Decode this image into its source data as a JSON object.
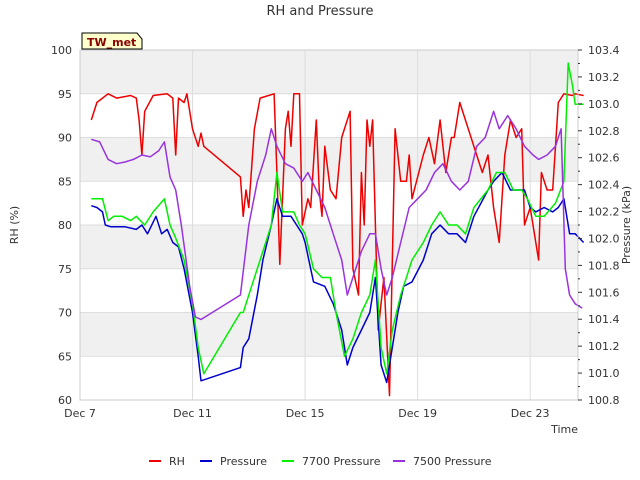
{
  "chart_data": {
    "type": "line",
    "title": "RH and Pressure",
    "station_tag": "TW_met",
    "xlabel": "Time",
    "ylabel_left": "RH (%)",
    "ylabel_right": "Pressure (kPa)",
    "x_unit": "days",
    "xlim": [
      7,
      24.7
    ],
    "ylim_left": [
      60,
      100
    ],
    "ylim_right": [
      100.8,
      103.4
    ],
    "x_ticks": [
      {
        "value": 7,
        "label": "Dec 7"
      },
      {
        "value": 11,
        "label": "Dec 11"
      },
      {
        "value": 15,
        "label": "Dec 15"
      },
      {
        "value": 19,
        "label": "Dec 19"
      },
      {
        "value": 23,
        "label": "Dec 23"
      }
    ],
    "y_ticks_left": [
      60,
      65,
      70,
      75,
      80,
      85,
      90,
      95,
      100
    ],
    "y_ticks_right": [
      "100.8",
      "101.0",
      "101.2",
      "101.4",
      "101.6",
      "101.8",
      "102.0",
      "102.2",
      "102.4",
      "102.6",
      "102.8",
      "103.0",
      "103.2",
      "103.4"
    ],
    "grid": true,
    "legend_position": "bottom",
    "series": [
      {
        "name": "RH",
        "axis": "left",
        "color": "#ee0000",
        "points": [
          [
            7.4,
            92
          ],
          [
            7.6,
            94
          ],
          [
            8.0,
            95
          ],
          [
            8.3,
            94.5
          ],
          [
            8.8,
            94.8
          ],
          [
            9.0,
            94.5
          ],
          [
            9.1,
            92
          ],
          [
            9.2,
            88
          ],
          [
            9.3,
            93
          ],
          [
            9.6,
            94.8
          ],
          [
            10.1,
            95
          ],
          [
            10.3,
            94.5
          ],
          [
            10.4,
            88
          ],
          [
            10.5,
            94.5
          ],
          [
            10.7,
            94
          ],
          [
            10.8,
            95
          ],
          [
            11.0,
            91
          ],
          [
            11.2,
            89
          ],
          [
            11.3,
            90.5
          ],
          [
            11.4,
            89
          ],
          [
            12.7,
            85.5
          ],
          [
            12.8,
            81
          ],
          [
            12.9,
            84
          ],
          [
            13.0,
            82
          ],
          [
            13.2,
            91
          ],
          [
            13.4,
            94.5
          ],
          [
            13.6,
            94.7
          ],
          [
            13.9,
            95
          ],
          [
            14.0,
            86
          ],
          [
            14.1,
            75.5
          ],
          [
            14.3,
            91
          ],
          [
            14.4,
            93
          ],
          [
            14.5,
            89
          ],
          [
            14.6,
            95
          ],
          [
            14.8,
            95
          ],
          [
            14.9,
            80
          ],
          [
            15.1,
            83
          ],
          [
            15.2,
            82
          ],
          [
            15.4,
            92
          ],
          [
            15.5,
            84
          ],
          [
            15.6,
            81
          ],
          [
            15.7,
            89
          ],
          [
            15.9,
            84
          ],
          [
            16.1,
            83
          ],
          [
            16.3,
            90
          ],
          [
            16.6,
            93
          ],
          [
            16.7,
            75
          ],
          [
            16.9,
            72
          ],
          [
            17.0,
            86
          ],
          [
            17.1,
            80
          ],
          [
            17.2,
            92
          ],
          [
            17.3,
            89
          ],
          [
            17.4,
            92
          ],
          [
            17.6,
            68
          ],
          [
            17.8,
            74
          ],
          [
            18.0,
            60.5
          ],
          [
            18.2,
            91
          ],
          [
            18.4,
            85
          ],
          [
            18.6,
            85
          ],
          [
            18.7,
            88
          ],
          [
            18.8,
            83
          ],
          [
            19.2,
            88
          ],
          [
            19.4,
            90
          ],
          [
            19.6,
            87
          ],
          [
            19.8,
            92
          ],
          [
            20.0,
            86
          ],
          [
            20.2,
            90
          ],
          [
            20.3,
            90
          ],
          [
            20.5,
            94
          ],
          [
            21.3,
            86
          ],
          [
            21.5,
            88
          ],
          [
            21.7,
            82
          ],
          [
            21.9,
            78
          ],
          [
            22.1,
            88
          ],
          [
            22.3,
            92
          ],
          [
            22.5,
            90
          ],
          [
            22.7,
            91
          ],
          [
            22.8,
            80
          ],
          [
            23.0,
            82
          ],
          [
            23.3,
            76
          ],
          [
            23.4,
            86
          ],
          [
            23.6,
            84
          ],
          [
            23.8,
            84
          ],
          [
            24.0,
            94
          ],
          [
            24.2,
            95
          ],
          [
            24.5,
            94.8
          ],
          [
            24.6,
            95
          ],
          [
            24.9,
            94.8
          ]
        ]
      },
      {
        "name": "Pressure",
        "axis": "left",
        "color": "#0000cc",
        "points": [
          [
            7.4,
            82.2
          ],
          [
            7.6,
            82
          ],
          [
            7.8,
            81.5
          ],
          [
            7.9,
            80
          ],
          [
            8.1,
            79.8
          ],
          [
            8.6,
            79.8
          ],
          [
            9.0,
            79.5
          ],
          [
            9.2,
            80
          ],
          [
            9.4,
            79
          ],
          [
            9.7,
            81
          ],
          [
            9.9,
            79
          ],
          [
            10.1,
            79.5
          ],
          [
            10.3,
            78
          ],
          [
            10.5,
            77.5
          ],
          [
            10.7,
            75
          ],
          [
            11.0,
            70
          ],
          [
            11.2,
            65
          ],
          [
            11.3,
            62.2
          ],
          [
            12.7,
            63.7
          ],
          [
            12.8,
            66
          ],
          [
            13.0,
            67
          ],
          [
            13.3,
            72
          ],
          [
            13.5,
            76
          ],
          [
            13.8,
            80
          ],
          [
            14.0,
            83
          ],
          [
            14.2,
            81
          ],
          [
            14.5,
            81
          ],
          [
            14.7,
            80
          ],
          [
            14.9,
            79
          ],
          [
            15.0,
            78
          ],
          [
            15.2,
            75
          ],
          [
            15.3,
            73.5
          ],
          [
            15.7,
            73
          ],
          [
            16.0,
            71
          ],
          [
            16.3,
            68
          ],
          [
            16.5,
            64
          ],
          [
            16.7,
            66
          ],
          [
            17.0,
            68
          ],
          [
            17.3,
            70
          ],
          [
            17.5,
            74
          ],
          [
            17.7,
            64
          ],
          [
            17.9,
            62
          ],
          [
            18.1,
            66
          ],
          [
            18.3,
            70
          ],
          [
            18.5,
            73
          ],
          [
            18.8,
            73.5
          ],
          [
            19.2,
            76
          ],
          [
            19.5,
            79
          ],
          [
            19.8,
            80
          ],
          [
            20.1,
            79
          ],
          [
            20.4,
            79
          ],
          [
            20.7,
            78
          ],
          [
            21.0,
            81
          ],
          [
            21.5,
            84
          ],
          [
            21.7,
            85
          ],
          [
            22.0,
            86
          ],
          [
            22.3,
            84
          ],
          [
            22.6,
            84
          ],
          [
            22.8,
            84
          ],
          [
            23.0,
            82
          ],
          [
            23.2,
            81.5
          ],
          [
            23.5,
            82
          ],
          [
            23.8,
            81.5
          ],
          [
            24.0,
            82
          ],
          [
            24.2,
            83
          ],
          [
            24.4,
            79
          ],
          [
            24.6,
            79
          ],
          [
            24.9,
            78
          ]
        ]
      },
      {
        "name": "7700 Pressure",
        "axis": "left",
        "color": "#00ee00",
        "points": [
          [
            7.4,
            83
          ],
          [
            7.8,
            83
          ],
          [
            8.0,
            80.5
          ],
          [
            8.2,
            81
          ],
          [
            8.5,
            81
          ],
          [
            8.8,
            80.5
          ],
          [
            9.0,
            81
          ],
          [
            9.3,
            80
          ],
          [
            9.6,
            81.5
          ],
          [
            10.0,
            83
          ],
          [
            10.2,
            80
          ],
          [
            10.4,
            78.5
          ],
          [
            10.7,
            76
          ],
          [
            11.0,
            71
          ],
          [
            11.2,
            66
          ],
          [
            11.4,
            63
          ],
          [
            12.7,
            70
          ],
          [
            12.8,
            70
          ],
          [
            13.1,
            73
          ],
          [
            13.4,
            76
          ],
          [
            13.8,
            80
          ],
          [
            14.0,
            86
          ],
          [
            14.2,
            81.5
          ],
          [
            14.6,
            81.5
          ],
          [
            14.8,
            80
          ],
          [
            15.0,
            79
          ],
          [
            15.3,
            75
          ],
          [
            15.6,
            74
          ],
          [
            15.9,
            74
          ],
          [
            16.1,
            70
          ],
          [
            16.4,
            65
          ],
          [
            16.7,
            67
          ],
          [
            17.0,
            70
          ],
          [
            17.3,
            72
          ],
          [
            17.5,
            76
          ],
          [
            17.7,
            66
          ],
          [
            17.9,
            63
          ],
          [
            18.1,
            68
          ],
          [
            18.4,
            72
          ],
          [
            18.6,
            74
          ],
          [
            18.8,
            76
          ],
          [
            19.2,
            78
          ],
          [
            19.5,
            80
          ],
          [
            19.8,
            81.5
          ],
          [
            20.1,
            80
          ],
          [
            20.4,
            80
          ],
          [
            20.7,
            79
          ],
          [
            21.0,
            82
          ],
          [
            21.5,
            84
          ],
          [
            21.8,
            86
          ],
          [
            22.1,
            86
          ],
          [
            22.4,
            84
          ],
          [
            22.7,
            84
          ],
          [
            22.9,
            83
          ],
          [
            23.2,
            81
          ],
          [
            23.5,
            81
          ],
          [
            23.9,
            82.5
          ],
          [
            24.2,
            85
          ],
          [
            24.35,
            98.5
          ],
          [
            24.5,
            96
          ],
          [
            24.6,
            93.8
          ],
          [
            24.9,
            93.8
          ]
        ]
      },
      {
        "name": "7500 Pressure",
        "axis": "left",
        "color": "#9933dd",
        "points": [
          [
            7.4,
            89.8
          ],
          [
            7.7,
            89.5
          ],
          [
            8.0,
            87.5
          ],
          [
            8.3,
            87
          ],
          [
            8.6,
            87.2
          ],
          [
            8.9,
            87.5
          ],
          [
            9.2,
            88
          ],
          [
            9.5,
            87.8
          ],
          [
            9.8,
            88.5
          ],
          [
            10.0,
            89.5
          ],
          [
            10.2,
            85.5
          ],
          [
            10.4,
            84
          ],
          [
            10.6,
            80
          ],
          [
            10.9,
            73
          ],
          [
            11.1,
            69.5
          ],
          [
            11.3,
            69.2
          ],
          [
            12.7,
            72
          ],
          [
            13.0,
            80
          ],
          [
            13.3,
            85
          ],
          [
            13.6,
            88
          ],
          [
            13.8,
            91
          ],
          [
            14.0,
            89
          ],
          [
            14.3,
            87
          ],
          [
            14.6,
            86.5
          ],
          [
            14.9,
            85
          ],
          [
            15.1,
            86
          ],
          [
            15.4,
            84
          ],
          [
            15.7,
            82
          ],
          [
            16.0,
            79
          ],
          [
            16.3,
            76
          ],
          [
            16.5,
            72
          ],
          [
            16.7,
            74
          ],
          [
            17.0,
            77
          ],
          [
            17.3,
            79
          ],
          [
            17.5,
            79
          ],
          [
            17.7,
            75
          ],
          [
            17.9,
            72
          ],
          [
            18.1,
            74
          ],
          [
            18.4,
            78
          ],
          [
            18.7,
            82
          ],
          [
            19.0,
            83
          ],
          [
            19.3,
            84
          ],
          [
            19.6,
            86
          ],
          [
            19.9,
            87
          ],
          [
            20.2,
            85
          ],
          [
            20.5,
            84
          ],
          [
            20.8,
            85
          ],
          [
            21.1,
            89
          ],
          [
            21.4,
            90
          ],
          [
            21.7,
            93
          ],
          [
            21.9,
            91
          ],
          [
            22.2,
            92.5
          ],
          [
            22.5,
            91
          ],
          [
            22.8,
            89
          ],
          [
            23.1,
            88
          ],
          [
            23.3,
            87.5
          ],
          [
            23.6,
            88
          ],
          [
            23.9,
            89
          ],
          [
            24.1,
            91
          ],
          [
            24.25,
            75
          ],
          [
            24.4,
            72
          ],
          [
            24.6,
            71
          ],
          [
            24.85,
            70.5
          ]
        ]
      }
    ]
  }
}
